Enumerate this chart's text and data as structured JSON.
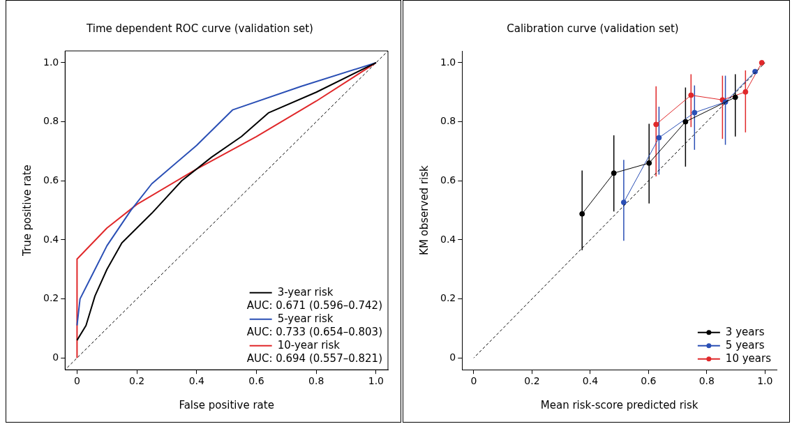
{
  "chart_data": [
    {
      "type": "line",
      "title": "Time dependent ROC curve (validation set)",
      "xlabel": "False positive rate",
      "ylabel": "True positive rate",
      "xlim": [
        -0.04,
        1.04
      ],
      "ylim": [
        -0.04,
        1.04
      ],
      "xticks": [
        0,
        0.2,
        0.4,
        0.6,
        0.8,
        {
          "value": 1,
          "label": "1.0"
        }
      ],
      "yticks": [
        0,
        0.2,
        0.4,
        0.6,
        0.8,
        {
          "value": 1,
          "label": "1.0"
        }
      ],
      "grid": false,
      "legend": "bottom right",
      "series": [
        {
          "name": "3-year risk",
          "color": "#000000",
          "x": [
            0,
            0.03,
            0.06,
            0.1,
            0.15,
            0.25,
            0.35,
            0.45,
            0.55,
            0.64,
            0.8,
            1
          ],
          "values": [
            0.06,
            0.11,
            0.21,
            0.3,
            0.39,
            0.49,
            0.6,
            0.68,
            0.75,
            0.83,
            0.9,
            1
          ]
        },
        {
          "name": "5-year risk",
          "color": "#2a4fb5",
          "x": [
            0,
            0.01,
            0.05,
            0.1,
            0.18,
            0.25,
            0.4,
            0.52,
            0.75,
            1
          ],
          "values": [
            0.11,
            0.2,
            0.28,
            0.38,
            0.5,
            0.59,
            0.72,
            0.84,
            0.92,
            1
          ]
        },
        {
          "name": "10-year risk",
          "color": "#e0282a",
          "x": [
            0,
            0,
            0.1,
            0.2,
            0.4,
            0.6,
            0.8,
            1
          ],
          "values": [
            0,
            0.335,
            0.44,
            0.52,
            0.64,
            0.75,
            0.87,
            1
          ]
        },
        {
          "color": "#000000",
          "x": [
            -0.04,
            1.04
          ],
          "values": [
            -0.04,
            1.04
          ],
          "line_style": "dashed"
        }
      ],
      "annotations": [
        "AUC: 0.671 (0.596–0.742)",
        "AUC: 0.733 (0.654–0.803)",
        "AUC: 0.694 (0.557–0.821)"
      ]
    },
    {
      "type": "line",
      "title": "Calibration curve (validation set)",
      "xlabel": "Mean risk-score predicted risk",
      "ylabel": "KM observed risk",
      "xlim": [
        -0.04,
        1.04
      ],
      "ylim": [
        -0.04,
        1.04
      ],
      "xticks": [
        0,
        0.2,
        0.4,
        0.6,
        0.8,
        {
          "value": 1,
          "label": "1.0"
        }
      ],
      "yticks": [
        0,
        0.2,
        0.4,
        0.6,
        0.8,
        {
          "value": 1,
          "label": "1.0"
        }
      ],
      "grid": false,
      "legend": "bottom right",
      "marker": "circle",
      "series": [
        {
          "color": "#000000",
          "x": [
            0,
            1
          ],
          "values": [
            0,
            1
          ],
          "line_style": "dashed",
          "marker": "none"
        },
        {
          "name": "3 years",
          "color": "#000000",
          "x": [
            0.372,
            0.481,
            0.602,
            0.727,
            0.898
          ],
          "values": [
            0.488,
            0.626,
            0.66,
            0.8,
            0.883
          ],
          "errors": [
            [
              0.365,
              0.635
            ],
            [
              0.496,
              0.754
            ],
            [
              0.523,
              0.793
            ],
            [
              0.648,
              0.916
            ],
            [
              0.75,
              0.961
            ]
          ]
        },
        {
          "name": "5 years",
          "color": "#2a4fb5",
          "x": [
            0.515,
            0.636,
            0.758,
            0.864,
            0.966
          ],
          "values": [
            0.527,
            0.746,
            0.831,
            0.867,
            0.97
          ],
          "errors": [
            [
              0.397,
              0.671
            ],
            [
              0.621,
              0.851
            ],
            [
              0.705,
              0.923
            ],
            [
              0.722,
              0.956
            ],
            null
          ]
        },
        {
          "name": "10 years",
          "color": "#e0282a",
          "x": [
            0.626,
            0.746,
            0.854,
            0.933,
            0.989
          ],
          "values": [
            0.791,
            0.89,
            0.874,
            0.901,
            1
          ],
          "errors": [
            [
              0.615,
              0.92
            ],
            [
              0.782,
              0.961
            ],
            [
              0.742,
              0.956
            ],
            [
              0.764,
              0.974
            ],
            null
          ]
        }
      ]
    }
  ]
}
